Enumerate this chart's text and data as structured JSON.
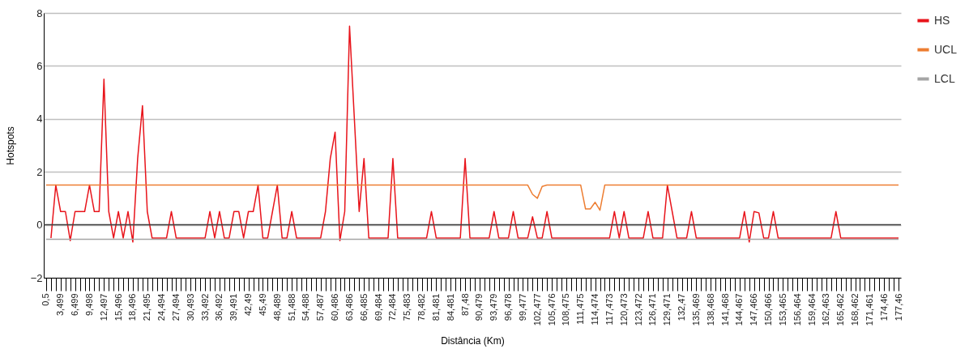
{
  "chart_data": {
    "type": "line",
    "xlabel": "Distância (Km)",
    "ylabel": "Hotspots",
    "categories": [
      "0,5",
      null,
      null,
      "3,499",
      null,
      null,
      "6,499",
      null,
      null,
      "9,498",
      null,
      null,
      "12,497",
      null,
      null,
      "15,496",
      null,
      null,
      "18,496",
      null,
      null,
      "21,495",
      null,
      null,
      "24,494",
      null,
      null,
      "27,494",
      null,
      null,
      "30,493",
      null,
      null,
      "33,492",
      null,
      null,
      "36,492",
      null,
      null,
      "39,491",
      null,
      null,
      "42,49",
      null,
      null,
      "45,49",
      null,
      null,
      "48,489",
      null,
      null,
      "51,488",
      null,
      null,
      "54,488",
      null,
      null,
      "57,487",
      null,
      null,
      "60,486",
      null,
      null,
      "63,486",
      null,
      null,
      "66,485",
      null,
      null,
      "69,484",
      null,
      null,
      "72,484",
      null,
      null,
      "75,483",
      null,
      null,
      "78,482",
      null,
      null,
      "81,481",
      null,
      null,
      "84,481",
      null,
      null,
      "87,48",
      null,
      null,
      "90,479",
      null,
      null,
      "93,479",
      null,
      null,
      "96,478",
      null,
      null,
      "99,477",
      null,
      null,
      "102,477",
      null,
      null,
      "105,476",
      null,
      null,
      "108,475",
      null,
      null,
      "111,475",
      null,
      null,
      "114,474",
      null,
      null,
      "117,473",
      null,
      null,
      "120,473",
      null,
      null,
      "123,472",
      null,
      null,
      "126,471",
      null,
      null,
      "129,471",
      null,
      null,
      "132,47",
      null,
      null,
      "135,469",
      null,
      null,
      "138,468",
      null,
      null,
      "141,468",
      null,
      null,
      "144,467",
      null,
      null,
      "147,466",
      null,
      null,
      "150,466",
      null,
      null,
      "153,465",
      null,
      null,
      "156,464",
      null,
      null,
      "159,464",
      null,
      null,
      "162,463",
      null,
      null,
      "165,462",
      null,
      null,
      "168,462",
      null,
      null,
      "171,461",
      null,
      null,
      "174,46",
      null,
      null,
      "177,46"
    ],
    "series": [
      {
        "name": "HS",
        "color": "#e8141b",
        "values": [
          null,
          -0.5,
          1.5,
          0.5,
          0.5,
          -0.6,
          0.5,
          0.5,
          0.5,
          1.5,
          0.5,
          0.5,
          5.5,
          0.5,
          -0.5,
          0.5,
          -0.5,
          0.5,
          -0.65,
          2.5,
          4.5,
          0.5,
          -0.5,
          -0.5,
          -0.5,
          -0.5,
          0.5,
          -0.5,
          -0.5,
          -0.5,
          -0.5,
          -0.5,
          -0.5,
          -0.5,
          0.5,
          -0.5,
          0.5,
          -0.5,
          -0.5,
          0.5,
          0.5,
          -0.5,
          0.5,
          0.5,
          1.5,
          -0.5,
          -0.5,
          0.5,
          1.5,
          -0.5,
          -0.5,
          0.5,
          -0.5,
          -0.5,
          -0.5,
          -0.5,
          -0.5,
          -0.5,
          0.5,
          2.5,
          3.5,
          -0.6,
          0.5,
          7.5,
          4,
          0.5,
          2.5,
          -0.5,
          -0.5,
          -0.5,
          -0.5,
          -0.5,
          2.5,
          -0.5,
          -0.5,
          -0.5,
          -0.5,
          -0.5,
          -0.5,
          -0.5,
          0.5,
          -0.5,
          -0.5,
          -0.5,
          -0.5,
          -0.5,
          -0.5,
          2.5,
          -0.5,
          -0.5,
          -0.5,
          -0.5,
          -0.5,
          0.5,
          -0.5,
          -0.5,
          -0.5,
          0.5,
          -0.5,
          -0.5,
          -0.5,
          0.3,
          -0.5,
          -0.5,
          0.5,
          -0.5,
          -0.5,
          -0.5,
          -0.5,
          -0.5,
          -0.5,
          -0.5,
          -0.5,
          -0.5,
          -0.5,
          -0.5,
          -0.5,
          -0.5,
          0.5,
          -0.5,
          0.5,
          -0.5,
          -0.5,
          -0.5,
          -0.5,
          0.5,
          -0.5,
          -0.5,
          -0.5,
          1.5,
          0.5,
          -0.5,
          -0.5,
          -0.5,
          0.5,
          -0.5,
          -0.5,
          -0.5,
          -0.5,
          -0.5,
          -0.5,
          -0.5,
          -0.5,
          -0.5,
          -0.5,
          0.5,
          -0.65,
          0.5,
          0.45,
          -0.5,
          -0.5,
          0.5,
          -0.5,
          -0.5,
          -0.5,
          -0.5,
          -0.5,
          -0.5,
          -0.5,
          -0.5,
          -0.5,
          -0.5,
          -0.5,
          -0.5,
          0.5,
          -0.5,
          -0.5,
          -0.5,
          -0.5,
          -0.5,
          -0.5,
          -0.5,
          -0.5,
          -0.5,
          -0.5,
          -0.5,
          -0.5,
          -0.5
        ]
      },
      {
        "name": "UCL",
        "color": "#ed7d31",
        "values": [
          1.5,
          1.5,
          1.5,
          1.5,
          1.5,
          1.5,
          1.5,
          1.5,
          1.5,
          1.5,
          1.5,
          1.5,
          1.5,
          1.5,
          1.5,
          1.5,
          1.5,
          1.5,
          1.5,
          1.5,
          1.5,
          1.5,
          1.5,
          1.5,
          1.5,
          1.5,
          1.5,
          1.5,
          1.5,
          1.5,
          1.5,
          1.5,
          1.5,
          1.5,
          1.5,
          1.5,
          1.5,
          1.5,
          1.5,
          1.5,
          1.5,
          1.5,
          1.5,
          1.5,
          1.5,
          1.5,
          1.5,
          1.5,
          1.5,
          1.5,
          1.5,
          1.5,
          1.5,
          1.5,
          1.5,
          1.5,
          1.5,
          1.5,
          1.5,
          1.5,
          1.5,
          1.5,
          1.5,
          1.5,
          1.5,
          1.5,
          1.5,
          1.5,
          1.5,
          1.5,
          1.5,
          1.5,
          1.5,
          1.5,
          1.5,
          1.5,
          1.5,
          1.5,
          1.5,
          1.5,
          1.5,
          1.5,
          1.5,
          1.5,
          1.5,
          1.5,
          1.5,
          1.5,
          1.5,
          1.5,
          1.5,
          1.5,
          1.5,
          1.5,
          1.5,
          1.5,
          1.5,
          1.5,
          1.5,
          1.5,
          1.5,
          1.15,
          1.0,
          1.45,
          1.5,
          1.5,
          1.5,
          1.5,
          1.5,
          1.5,
          1.5,
          1.5,
          0.6,
          0.6,
          0.85,
          0.55,
          1.5,
          1.5,
          1.5,
          1.5,
          1.5,
          1.5,
          1.5,
          1.5,
          1.5,
          1.5,
          1.5,
          1.5,
          1.5,
          1.5,
          1.5,
          1.5,
          1.5,
          1.5,
          1.5,
          1.5,
          1.5,
          1.5,
          1.5,
          1.5,
          1.5,
          1.5,
          1.5,
          1.5,
          1.5,
          1.5,
          1.5,
          1.5,
          1.5,
          1.5,
          1.5,
          1.5,
          1.5,
          1.5,
          1.5,
          1.5,
          1.5,
          1.5,
          1.5,
          1.5,
          1.5,
          1.5,
          1.5,
          1.5,
          1.5,
          1.5,
          1.5,
          1.5,
          1.5,
          1.5,
          1.5,
          1.5,
          1.5,
          1.5,
          1.5,
          1.5,
          1.5,
          1.5
        ]
      },
      {
        "name": "LCL",
        "color": "#a5a5a5",
        "values": [
          -0.55,
          -0.55,
          -0.55,
          -0.55,
          -0.55,
          -0.55,
          -0.55,
          -0.55,
          -0.55,
          -0.55,
          -0.55,
          -0.55,
          -0.55,
          -0.55,
          -0.55,
          -0.55,
          -0.55,
          -0.55,
          -0.55,
          -0.55,
          -0.55,
          -0.55,
          -0.55,
          -0.55,
          -0.55,
          -0.55,
          -0.55,
          -0.55,
          -0.55,
          -0.55,
          -0.55,
          -0.55,
          -0.55,
          -0.55,
          -0.55,
          -0.55,
          -0.55,
          -0.55,
          -0.55,
          -0.55,
          -0.55,
          -0.55,
          -0.55,
          -0.55,
          -0.55,
          -0.55,
          -0.55,
          -0.55,
          -0.55,
          -0.55,
          -0.55,
          -0.55,
          -0.55,
          -0.55,
          -0.55,
          -0.55,
          -0.55,
          -0.55,
          -0.55,
          -0.55,
          -0.55,
          -0.55,
          -0.55,
          -0.55,
          -0.55,
          -0.55,
          -0.55,
          -0.55,
          -0.55,
          -0.55,
          -0.55,
          -0.55,
          -0.55,
          -0.55,
          -0.55,
          -0.55,
          -0.55,
          -0.55,
          -0.55,
          -0.55,
          -0.55,
          -0.55,
          -0.55,
          -0.55,
          -0.55,
          -0.55,
          -0.55,
          -0.55,
          -0.55,
          -0.55,
          -0.55,
          -0.55,
          -0.55,
          -0.55,
          -0.55,
          -0.55,
          -0.55,
          -0.55,
          -0.55,
          -0.55,
          -0.55,
          -0.55,
          -0.55,
          -0.55,
          -0.55,
          -0.55,
          -0.55,
          -0.55,
          -0.55,
          -0.55,
          -0.55,
          -0.55,
          -0.55,
          -0.55,
          -0.55,
          -0.55,
          -0.55,
          -0.55,
          -0.55,
          -0.55,
          -0.55,
          -0.55,
          -0.55,
          -0.55,
          -0.55,
          -0.55,
          -0.55,
          -0.55,
          -0.55,
          -0.55,
          -0.55,
          -0.55,
          -0.55,
          -0.55,
          -0.55,
          -0.55,
          -0.55,
          -0.55,
          -0.55,
          -0.55,
          -0.55,
          -0.55,
          -0.55,
          -0.55,
          -0.55,
          -0.55,
          -0.55,
          -0.55,
          -0.55,
          -0.55,
          -0.55,
          -0.55,
          -0.55,
          -0.55,
          -0.55,
          -0.55,
          -0.55,
          -0.55,
          -0.55,
          -0.55,
          -0.55,
          -0.55,
          -0.55,
          -0.55,
          -0.55,
          -0.55,
          -0.55,
          -0.55,
          -0.55,
          -0.55,
          -0.55,
          -0.55,
          -0.55,
          -0.55,
          -0.55,
          -0.55,
          -0.55,
          -0.55
        ]
      }
    ],
    "ylim": [
      -2,
      8
    ],
    "yticks": [
      -2,
      0,
      2,
      4,
      6,
      8
    ],
    "grid": "y",
    "legend": "top right",
    "ref_lines": [
      {
        "axis": "y",
        "value": 0,
        "color": "#404040"
      }
    ]
  }
}
